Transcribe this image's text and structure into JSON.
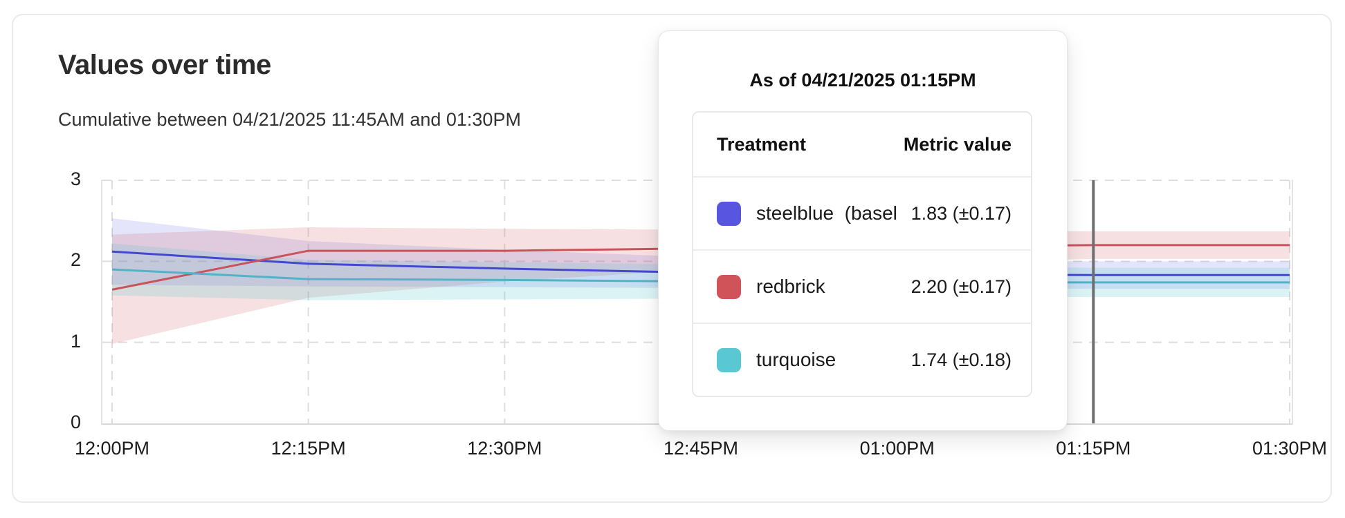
{
  "header": {
    "title": "Values over time",
    "subtitle": "Cumulative between 04/21/2025 11:45AM and 01:30PM"
  },
  "tooltip": {
    "title": "As of 04/21/2025 01:15PM",
    "columns": [
      "Treatment",
      "Metric value"
    ],
    "rows": [
      {
        "swatch_color": "#5856e0",
        "label": "steelblue  (baseli",
        "value": "1.83 (±0.17)"
      },
      {
        "swatch_color": "#d05359",
        "label": "redbrick",
        "value": "2.20 (±0.17)"
      },
      {
        "swatch_color": "#5ac8d2",
        "label": "turquoise",
        "value": "1.74 (±0.18)"
      }
    ]
  },
  "chart_data": {
    "type": "line",
    "title": "Values over time",
    "subtitle": "Cumulative between 04/21/2025 11:45AM and 01:30PM",
    "x": [
      "12:00PM",
      "12:15PM",
      "12:30PM",
      "12:45PM",
      "01:00PM",
      "01:15PM",
      "01:30PM"
    ],
    "yticks": [
      0,
      1,
      2,
      3
    ],
    "ylim": [
      0,
      3
    ],
    "grid": "dashed",
    "hover_x": "01:15PM",
    "hover_line_color": "#6e6e6e",
    "series": [
      {
        "name": "steelblue (baseline)",
        "line_color": "#4347d2",
        "band_color": "rgba(88,86,224,0.16)",
        "values": [
          2.12,
          1.97,
          1.91,
          1.86,
          1.84,
          1.83,
          1.83
        ],
        "band_upper": [
          2.53,
          2.25,
          2.14,
          2.05,
          2.01,
          2.0,
          2.0
        ],
        "band_lower": [
          1.71,
          1.69,
          1.68,
          1.67,
          1.66,
          1.66,
          1.66
        ],
        "value_at_hover": "1.83 (±0.17)"
      },
      {
        "name": "redbrick",
        "line_color": "#c9535a",
        "band_color": "rgba(205,83,90,0.18)",
        "values": [
          1.65,
          2.13,
          2.13,
          2.16,
          2.18,
          2.2,
          2.2
        ],
        "band_upper": [
          2.33,
          2.42,
          2.4,
          2.39,
          2.38,
          2.37,
          2.37
        ],
        "band_lower": [
          0.98,
          1.55,
          1.75,
          1.9,
          1.98,
          2.03,
          2.03
        ],
        "value_at_hover": "2.20 (±0.17)"
      },
      {
        "name": "turquoise",
        "line_color": "#52b2c8",
        "band_color": "rgba(90,200,210,0.22)",
        "values": [
          1.9,
          1.78,
          1.77,
          1.75,
          1.74,
          1.74,
          1.74
        ],
        "band_upper": [
          2.22,
          2.02,
          1.99,
          1.96,
          1.94,
          1.92,
          1.92
        ],
        "band_lower": [
          1.58,
          1.52,
          1.53,
          1.54,
          1.55,
          1.56,
          1.56
        ],
        "value_at_hover": "1.74 (±0.18)"
      }
    ]
  }
}
